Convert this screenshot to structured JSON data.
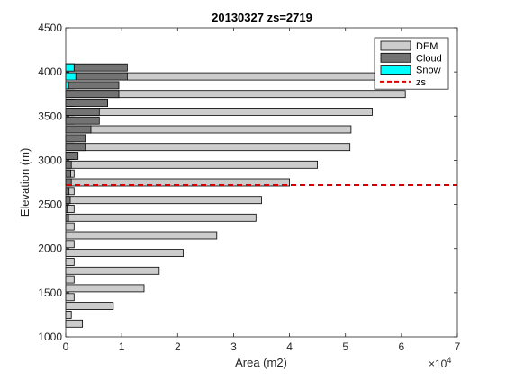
{
  "chart_data": {
    "type": "bar",
    "orientation": "horizontal",
    "stacked": false,
    "title": "20130327 zs=2719",
    "xlabel": "Area (m2)",
    "ylabel": "Elevation (m)",
    "x_multiplier_label": "×10",
    "x_multiplier_exp": "4",
    "xlim": [
      0,
      7
    ],
    "ylim": [
      1000,
      4500
    ],
    "xticks": [
      "0",
      "1",
      "2",
      "3",
      "4",
      "5",
      "6",
      "7"
    ],
    "yticks": [
      "1000",
      "1500",
      "2000",
      "2500",
      "3000",
      "3500",
      "4000",
      "4500"
    ],
    "grid": false,
    "legend_position": "top-right",
    "elevation_bins": [
      1150,
      1250,
      1350,
      1450,
      1550,
      1650,
      1750,
      1850,
      1950,
      2050,
      2150,
      2250,
      2350,
      2450,
      2550,
      2650,
      2750,
      2850,
      2950,
      3050,
      3150,
      3250,
      3350,
      3450,
      3550,
      3650,
      3750,
      3850,
      3950,
      4050
    ],
    "series": [
      {
        "name": "DEM",
        "color": "#cccccc",
        "values": [
          0.3,
          0.1,
          0.85,
          0.15,
          1.4,
          0.15,
          1.67,
          0.15,
          2.1,
          0.15,
          2.7,
          0.15,
          3.4,
          0.15,
          3.5,
          0.15,
          4.0,
          0.15,
          4.5,
          0.15,
          5.08,
          0.15,
          5.1,
          0.15,
          5.48,
          0.15,
          6.07,
          0.15,
          5.93,
          0.15
        ]
      },
      {
        "name": "Cloud",
        "color": "#737373",
        "values": [
          0,
          0,
          0,
          0,
          0,
          0,
          0,
          0,
          0,
          0,
          0,
          0,
          0.05,
          0.03,
          0.08,
          0.06,
          0.1,
          0.09,
          0.1,
          0.22,
          0.35,
          0.35,
          0.45,
          0.6,
          0.6,
          0.75,
          0.95,
          0.95,
          1.1,
          1.1
        ]
      },
      {
        "name": "Snow",
        "color": "#00ffff",
        "values": [
          0,
          0,
          0,
          0,
          0,
          0,
          0,
          0,
          0,
          0,
          0,
          0,
          0,
          0,
          0,
          0,
          0,
          0,
          0,
          0,
          0,
          0,
          0,
          0,
          0,
          0,
          0,
          0.05,
          0.18,
          0.15
        ]
      },
      {
        "name": "zs",
        "color": "#d40000",
        "style": "dashed",
        "value": 2719
      }
    ]
  }
}
